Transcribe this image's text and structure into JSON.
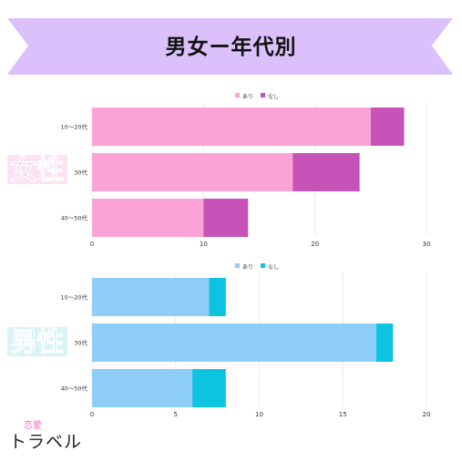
{
  "title": "男女ー年代別",
  "labels": {
    "female": "女性",
    "male": "男性"
  },
  "logo": {
    "top": "恋愛",
    "main": "トラベル"
  },
  "colors": {
    "banner": "#dcc0fb",
    "female_ari": "#fca3d6",
    "female_nashi": "#c753b8",
    "male_ari": "#8fcdf9",
    "male_nashi": "#0cc4e0"
  },
  "chart_data": [
    {
      "type": "bar",
      "orientation": "horizontal",
      "stacked": true,
      "categories": [
        "10〜20代",
        "30代",
        "40〜50代"
      ],
      "series": [
        {
          "name": "あり",
          "values": [
            25,
            18,
            10
          ]
        },
        {
          "name": "なし",
          "values": [
            3,
            6,
            4
          ]
        }
      ],
      "xlim": [
        0,
        30
      ],
      "xticks": [
        "0",
        "10",
        "20",
        "30"
      ],
      "legend": "top-center",
      "grid": true
    },
    {
      "type": "bar",
      "orientation": "horizontal",
      "stacked": true,
      "categories": [
        "10〜20代",
        "30代",
        "40〜50代"
      ],
      "series": [
        {
          "name": "あり",
          "values": [
            7,
            17,
            6
          ]
        },
        {
          "name": "なし",
          "values": [
            1,
            1,
            2
          ]
        }
      ],
      "xlim": [
        0,
        20
      ],
      "xticks": [
        "0",
        "5",
        "10",
        "15",
        "20"
      ],
      "legend": "top-center",
      "grid": true
    }
  ]
}
